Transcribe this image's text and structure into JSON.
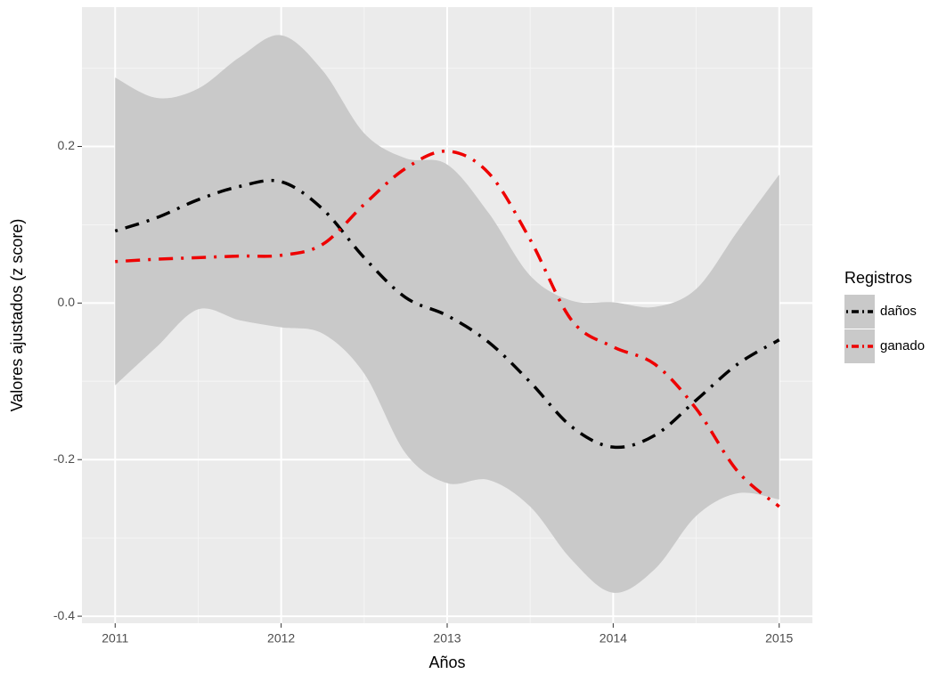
{
  "chart_data": {
    "type": "line",
    "x_label": "Años",
    "y_label": "Valores ajustados (z score)",
    "x": [
      2011,
      2011.25,
      2011.5,
      2011.75,
      2012,
      2012.25,
      2012.5,
      2012.75,
      2013,
      2013.25,
      2013.5,
      2013.75,
      2014,
      2014.25,
      2014.5,
      2014.75,
      2015
    ],
    "series": [
      {
        "name": "daños",
        "color": "#000000",
        "values": [
          0.092,
          0.109,
          0.132,
          0.149,
          0.155,
          0.12,
          0.058,
          0.007,
          -0.016,
          -0.05,
          -0.101,
          -0.158,
          -0.184,
          -0.169,
          -0.124,
          -0.078,
          -0.047
        ]
      },
      {
        "name": "ganado",
        "color": "#ee0000",
        "values": [
          0.053,
          0.056,
          0.058,
          0.06,
          0.061,
          0.075,
          0.126,
          0.172,
          0.194,
          0.166,
          0.081,
          -0.022,
          -0.056,
          -0.078,
          -0.135,
          -0.215,
          -0.26
        ]
      }
    ],
    "band": {
      "color": "#c9c9c9",
      "upper": [
        0.288,
        0.262,
        0.274,
        0.314,
        0.342,
        0.297,
        0.217,
        0.185,
        0.177,
        0.115,
        0.035,
        0.003,
        0.001,
        -0.005,
        0.018,
        0.092,
        0.164
      ],
      "lower": [
        -0.105,
        -0.056,
        -0.008,
        -0.022,
        -0.031,
        -0.039,
        -0.09,
        -0.192,
        -0.23,
        -0.226,
        -0.26,
        -0.328,
        -0.37,
        -0.34,
        -0.272,
        -0.243,
        -0.251
      ]
    },
    "xlim": [
      2010.8,
      2015.2
    ],
    "xticks": [
      2011,
      2012,
      2013,
      2014,
      2015
    ],
    "ylim": [
      -0.409,
      0.378
    ],
    "yticks": [
      -0.4,
      -0.2,
      {
        "value": 0,
        "label": "0.0"
      },
      0.2
    ],
    "grid": true,
    "minor_grid": true,
    "legend": {
      "title": "Registros",
      "position": "right"
    }
  }
}
